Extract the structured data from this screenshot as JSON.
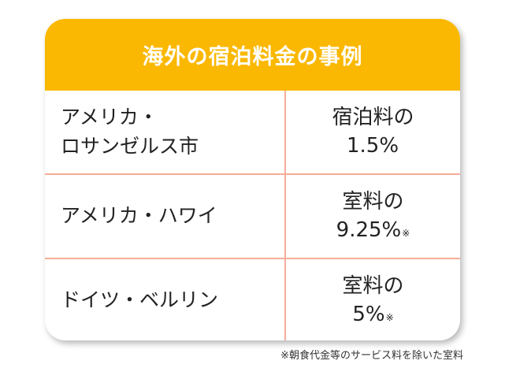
{
  "header": {
    "title": "海外の宿泊料金の事例"
  },
  "rows": [
    {
      "city_line1": "アメリカ・",
      "city_line2": "ロサンゼルス市",
      "rate_line1": "宿泊料の",
      "rate_line2": "1.5%",
      "note_mark": ""
    },
    {
      "city_line1": "アメリカ・ハワイ",
      "city_line2": "",
      "rate_line1": "室料の",
      "rate_line2": "9.25%",
      "note_mark": "※"
    },
    {
      "city_line1": "ドイツ・ベルリン",
      "city_line2": "",
      "rate_line1": "室料の",
      "rate_line2": "5%",
      "note_mark": "※"
    }
  ],
  "footnote": "※朝食代金等のサービス料を除いた室料",
  "colors": {
    "header_bg": "#fbb802",
    "divider": "#f6ad9a"
  }
}
